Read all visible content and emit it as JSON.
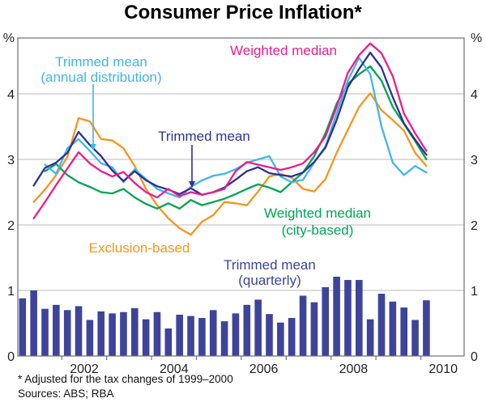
{
  "title": "Consumer Price Inflation*",
  "footnotes": {
    "note": "* Adjusted for the tax changes of 1999–2000",
    "sources": "Sources: ABS; RBA"
  },
  "axis": {
    "unit_left": "%",
    "unit_right": "%",
    "y_tick_labels": [
      0,
      1,
      2,
      3,
      4
    ],
    "x_tick_labels": [
      2002,
      2004,
      2006,
      2008,
      2010
    ]
  },
  "series_labels": {
    "weighted_median": {
      "line1": "Weighted median"
    },
    "trimmed_mean": {
      "line1": "Trimmed mean"
    },
    "trimmed_mean_annual": {
      "line1": "Trimmed mean",
      "line2": "(annual distribution)"
    },
    "weighted_median_city": {
      "line1": "Weighted median",
      "line2": "(city-based)"
    },
    "exclusion_based": {
      "line1": "Exclusion-based"
    },
    "trimmed_mean_quarterly": {
      "line1": "Trimmed mean",
      "line2": "(quarterly)"
    }
  },
  "colors": {
    "weighted_median": "#EC1C8D",
    "trimmed_mean": "#2E3192",
    "trimmed_mean_annual": "#41B6E8",
    "weighted_median_city": "#00A553",
    "exclusion_based": "#F7941E",
    "trimmed_mean_quarterly": "#3D4499",
    "gridline": "#bbbbbb",
    "frame": "#6e6e73",
    "text": "#231f20"
  },
  "chart_data": {
    "type": "line+bar",
    "title": "Consumer Price Inflation*",
    "x_unit": "quarter",
    "quarters": [
      "2001Q1",
      "2001Q2",
      "2001Q3",
      "2001Q4",
      "2002Q1",
      "2002Q2",
      "2002Q3",
      "2002Q4",
      "2003Q1",
      "2003Q2",
      "2003Q3",
      "2003Q4",
      "2004Q1",
      "2004Q2",
      "2004Q3",
      "2004Q4",
      "2005Q1",
      "2005Q2",
      "2005Q3",
      "2005Q4",
      "2006Q1",
      "2006Q2",
      "2006Q3",
      "2006Q4",
      "2007Q1",
      "2007Q2",
      "2007Q3",
      "2007Q4",
      "2008Q1",
      "2008Q2",
      "2008Q3",
      "2008Q4",
      "2009Q1",
      "2009Q2",
      "2009Q3",
      "2009Q4",
      "2010Q1"
    ],
    "ylabel": "%",
    "ylim": [
      0,
      4.85
    ],
    "y_gridlines": [
      1,
      2,
      3,
      4
    ],
    "xlabel_years": [
      2002,
      2004,
      2006,
      2008,
      2010
    ],
    "tick_years": [
      2002,
      2003,
      2004,
      2005,
      2006,
      2007,
      2008,
      2009,
      2010
    ],
    "grid": true,
    "legend": "inline-labels",
    "series": [
      {
        "key": "trimmed_mean_quarterly",
        "name": "Trimmed mean (quarterly)",
        "type": "bar",
        "color": "#3D4499",
        "values": [
          0.88,
          1.0,
          0.72,
          0.78,
          0.7,
          0.76,
          0.55,
          0.68,
          0.65,
          0.67,
          0.73,
          0.56,
          0.67,
          0.42,
          0.63,
          0.61,
          0.58,
          0.7,
          0.53,
          0.65,
          0.78,
          0.86,
          0.64,
          0.51,
          0.58,
          0.92,
          0.82,
          1.05,
          1.21,
          1.16,
          1.16,
          0.56,
          0.95,
          0.83,
          0.74,
          0.55,
          0.85
        ]
      },
      {
        "key": "exclusion_based",
        "name": "Exclusion-based",
        "type": "line",
        "color": "#F7941E",
        "values": [
          null,
          2.35,
          2.54,
          2.76,
          3.04,
          3.63,
          3.58,
          3.31,
          3.29,
          3.17,
          2.9,
          2.55,
          2.3,
          2.1,
          1.95,
          1.85,
          2.05,
          2.15,
          2.35,
          2.33,
          2.3,
          2.51,
          2.74,
          2.78,
          2.72,
          2.55,
          2.51,
          2.7,
          3.1,
          3.45,
          3.8,
          4.01,
          3.75,
          3.6,
          3.44,
          3.1,
          2.9
        ]
      },
      {
        "key": "weighted_median_city",
        "name": "Weighted median (city-based)",
        "type": "line",
        "color": "#00A553",
        "values": [
          null,
          null,
          2.82,
          2.93,
          2.76,
          2.65,
          2.58,
          2.5,
          2.48,
          2.55,
          2.42,
          2.32,
          2.25,
          2.33,
          2.25,
          2.38,
          2.3,
          2.35,
          2.4,
          2.47,
          2.55,
          2.62,
          2.57,
          2.5,
          2.65,
          2.8,
          3.05,
          3.4,
          3.85,
          4.15,
          4.3,
          4.42,
          4.2,
          3.8,
          3.54,
          3.28,
          3.0
        ]
      },
      {
        "key": "trimmed_mean_annual",
        "name": "Trimmed mean (annual distribution)",
        "type": "line",
        "color": "#41B6E8",
        "values": [
          null,
          null,
          2.92,
          2.78,
          3.17,
          3.31,
          3.13,
          2.94,
          2.88,
          2.65,
          2.85,
          2.7,
          2.55,
          2.48,
          2.42,
          2.58,
          2.68,
          2.75,
          2.78,
          2.85,
          2.95,
          3.0,
          3.05,
          2.74,
          2.65,
          2.69,
          2.95,
          3.2,
          3.7,
          4.2,
          4.55,
          4.3,
          3.5,
          2.95,
          2.76,
          2.9,
          2.8
        ]
      },
      {
        "key": "trimmed_mean",
        "name": "Trimmed mean",
        "type": "line",
        "color": "#2E3192",
        "values": [
          null,
          2.6,
          2.87,
          2.95,
          3.1,
          3.42,
          3.22,
          3.05,
          2.83,
          2.67,
          2.82,
          2.68,
          2.59,
          2.54,
          2.47,
          2.56,
          2.46,
          2.5,
          2.57,
          2.69,
          2.82,
          2.88,
          2.79,
          2.76,
          2.74,
          2.8,
          2.96,
          3.18,
          3.6,
          4.1,
          4.38,
          4.63,
          4.4,
          3.95,
          3.55,
          3.3,
          3.07
        ]
      },
      {
        "key": "weighted_median",
        "name": "Weighted median",
        "type": "line",
        "color": "#EC1C8D",
        "values": [
          null,
          2.1,
          2.35,
          2.61,
          2.86,
          3.11,
          2.94,
          2.82,
          2.74,
          2.81,
          2.64,
          2.5,
          2.42,
          2.55,
          2.44,
          2.5,
          2.46,
          2.5,
          2.55,
          2.82,
          2.96,
          2.92,
          2.88,
          2.84,
          2.88,
          2.94,
          3.11,
          3.35,
          3.8,
          4.32,
          4.59,
          4.77,
          4.62,
          4.27,
          3.7,
          3.4,
          3.13
        ]
      }
    ]
  }
}
